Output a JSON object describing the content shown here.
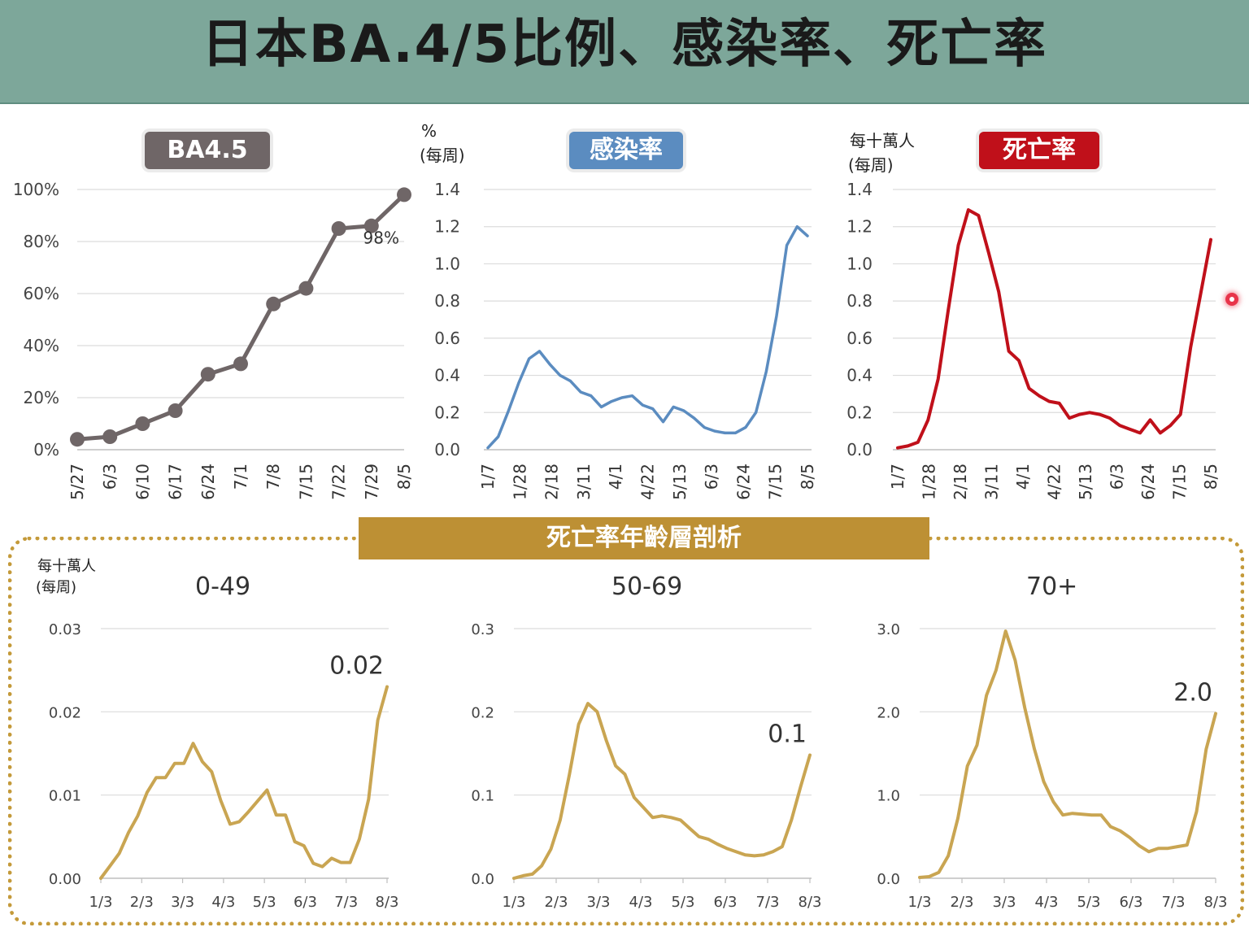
{
  "header": {
    "title": "日本BA.4/5比例、感染率、死亡率"
  },
  "badges": {
    "ba": "BA4.5",
    "infection": "感染率",
    "death": "死亡率"
  },
  "units": {
    "percent_symbol": "%",
    "per_week": "(每周)",
    "per_million": "每十萬人"
  },
  "age_section": {
    "banner": "死亡率年齡層剖析"
  },
  "colors": {
    "header_bg": "#7da79a",
    "ba_series": "#6f6667",
    "infection_series": "#5b8cc0",
    "death_series": "#c0101a",
    "age_series": "#c9a552",
    "age_frame": "#c49a3a"
  },
  "chart_data": [
    {
      "id": "ba45",
      "type": "line",
      "markers": true,
      "title": "BA4.5",
      "categories": [
        "5/27",
        "6/3",
        "6/10",
        "6/17",
        "6/24",
        "7/1",
        "7/8",
        "7/15",
        "7/22",
        "7/29",
        "8/5"
      ],
      "values": [
        4,
        5,
        10,
        15,
        29,
        33,
        56,
        62,
        85,
        86,
        98
      ],
      "ylim": [
        0,
        100
      ],
      "yticks": [
        0,
        20,
        40,
        60,
        80,
        100
      ],
      "ytick_labels": [
        "0%",
        "20%",
        "40%",
        "60%",
        "80%",
        "100%"
      ],
      "annotations": [
        {
          "text": "98%",
          "x": "8/5",
          "y": 98
        }
      ],
      "grid": true
    },
    {
      "id": "infection",
      "type": "line",
      "title": "感染率",
      "ylabel": "% (每周)",
      "xtick_labels": [
        "1/7",
        "1/28",
        "2/18",
        "3/11",
        "4/1",
        "4/22",
        "5/13",
        "6/3",
        "6/24",
        "7/15",
        "8/5"
      ],
      "values": [
        0.01,
        0.07,
        0.21,
        0.36,
        0.49,
        0.53,
        0.46,
        0.4,
        0.37,
        0.31,
        0.29,
        0.23,
        0.26,
        0.28,
        0.29,
        0.24,
        0.22,
        0.15,
        0.23,
        0.21,
        0.17,
        0.12,
        0.1,
        0.09,
        0.09,
        0.12,
        0.2,
        0.42,
        0.72,
        1.1,
        1.2,
        1.15
      ],
      "ylim": [
        0,
        1.4
      ],
      "yticks": [
        0,
        0.2,
        0.4,
        0.6,
        0.8,
        1.0,
        1.2,
        1.4
      ],
      "ytick_labels": [
        "0.0",
        "0.2",
        "0.4",
        "0.6",
        "0.8",
        "1.0",
        "1.2",
        "1.4"
      ],
      "grid": true
    },
    {
      "id": "death",
      "type": "line",
      "title": "死亡率",
      "ylabel": "每十萬人 (每周)",
      "xtick_labels": [
        "1/7",
        "1/28",
        "2/18",
        "3/11",
        "4/1",
        "4/22",
        "5/13",
        "6/3",
        "6/24",
        "7/15",
        "8/5"
      ],
      "values": [
        0.01,
        0.02,
        0.04,
        0.16,
        0.38,
        0.75,
        1.1,
        1.29,
        1.26,
        1.06,
        0.85,
        0.53,
        0.48,
        0.33,
        0.29,
        0.26,
        0.25,
        0.17,
        0.19,
        0.2,
        0.19,
        0.17,
        0.13,
        0.11,
        0.09,
        0.16,
        0.09,
        0.13,
        0.19,
        0.55,
        0.84,
        1.13
      ],
      "ylim": [
        0,
        1.4
      ],
      "yticks": [
        0,
        0.2,
        0.4,
        0.6,
        0.8,
        1.0,
        1.2,
        1.4
      ],
      "ytick_labels": [
        "0.0",
        "0.2",
        "0.4",
        "0.6",
        "0.8",
        "1.0",
        "1.2",
        "1.4"
      ],
      "grid": true
    },
    {
      "id": "age_0_49",
      "type": "line",
      "title": "0-49",
      "ylabel": "每十萬人 (每周)",
      "xtick_labels": [
        "1/3",
        "2/3",
        "3/3",
        "4/3",
        "5/3",
        "6/3",
        "7/3",
        "8/3"
      ],
      "values": [
        0,
        0.0015,
        0.003,
        0.0055,
        0.0075,
        0.0103,
        0.0121,
        0.0121,
        0.0138,
        0.0138,
        0.0162,
        0.014,
        0.0128,
        0.0093,
        0.0065,
        0.0068,
        0.008,
        0.0093,
        0.0106,
        0.0076,
        0.0076,
        0.0044,
        0.0039,
        0.0018,
        0.0014,
        0.0024,
        0.0019,
        0.0019,
        0.0047,
        0.0095,
        0.019,
        0.023
      ],
      "ylim": [
        0,
        0.03
      ],
      "yticks": [
        0,
        0.01,
        0.02,
        0.03
      ],
      "ytick_labels": [
        "0.00",
        "0.01",
        "0.02",
        "0.03"
      ],
      "annotations": [
        {
          "text": "0.02",
          "x": "last",
          "y": 0.023
        }
      ],
      "grid": true
    },
    {
      "id": "age_50_69",
      "type": "line",
      "title": "50-69",
      "xtick_labels": [
        "1/3",
        "2/3",
        "3/3",
        "4/3",
        "5/3",
        "6/3",
        "7/3",
        "8/3"
      ],
      "values": [
        0,
        0.003,
        0.005,
        0.015,
        0.035,
        0.07,
        0.125,
        0.185,
        0.21,
        0.2,
        0.165,
        0.135,
        0.125,
        0.097,
        0.085,
        0.073,
        0.075,
        0.073,
        0.07,
        0.06,
        0.05,
        0.047,
        0.041,
        0.036,
        0.032,
        0.028,
        0.027,
        0.028,
        0.032,
        0.038,
        0.07,
        0.11,
        0.148
      ],
      "ylim": [
        0,
        0.3
      ],
      "yticks": [
        0,
        0.1,
        0.2,
        0.3
      ],
      "ytick_labels": [
        "0.0",
        "0.1",
        "0.2",
        "0.3"
      ],
      "annotations": [
        {
          "text": "0.1",
          "x": "last",
          "y": 0.148
        }
      ],
      "grid": true
    },
    {
      "id": "age_70_plus",
      "type": "line",
      "title": "70+",
      "xtick_labels": [
        "1/3",
        "2/3",
        "3/3",
        "4/3",
        "5/3",
        "6/3",
        "7/3",
        "8/3"
      ],
      "values": [
        0.01,
        0.02,
        0.07,
        0.27,
        0.72,
        1.35,
        1.6,
        2.2,
        2.5,
        2.97,
        2.62,
        2.05,
        1.56,
        1.16,
        0.92,
        0.76,
        0.78,
        0.77,
        0.76,
        0.76,
        0.62,
        0.57,
        0.49,
        0.39,
        0.32,
        0.36,
        0.36,
        0.38,
        0.4,
        0.8,
        1.55,
        1.98
      ],
      "ylim": [
        0,
        3.0
      ],
      "yticks": [
        0,
        1.0,
        2.0,
        3.0
      ],
      "ytick_labels": [
        "0.0",
        "1.0",
        "2.0",
        "3.0"
      ],
      "annotations": [
        {
          "text": "2.0",
          "x": "last",
          "y": 1.98
        }
      ],
      "grid": true
    }
  ]
}
